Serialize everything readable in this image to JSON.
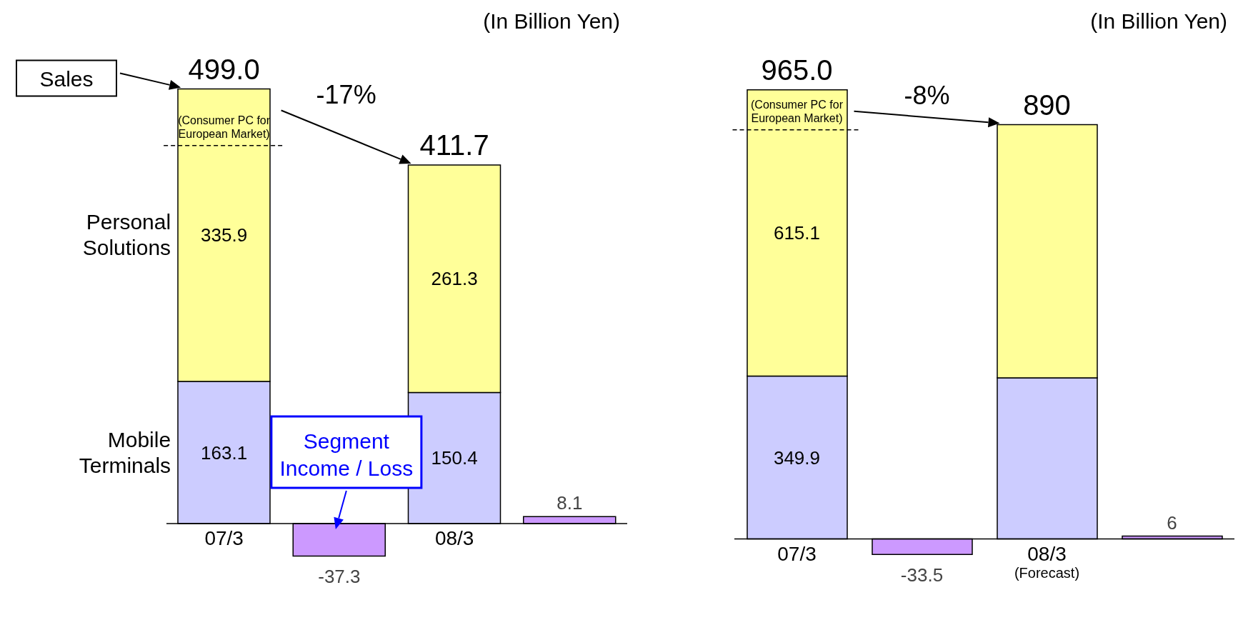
{
  "chart_data": [
    {
      "type": "bar",
      "stacked": true,
      "data_labels": true,
      "categories": [
        "07/3",
        null,
        "08/3",
        null
      ],
      "series": [
        {
          "name": "Mobile Terminals",
          "color": "#ccccff",
          "values": [
            163.1,
            null,
            150.4,
            null
          ]
        },
        {
          "name": "Personal Solutions",
          "color": "#ffff99",
          "values": [
            335.9,
            null,
            261.3,
            null
          ]
        },
        {
          "name": "Segment Income / Loss",
          "color": "#cc99ff",
          "values": [
            null,
            -37.3,
            null,
            8.1
          ]
        }
      ],
      "totals": [
        "499.0",
        null,
        "411.7",
        null
      ],
      "ref_lines": [
        {
          "axis": "y",
          "value": 434,
          "label": "(Consumer PC for European Market)",
          "line_style": "dashed"
        }
      ],
      "annotations": [
        "(In Billion Yen)",
        "Sales",
        "-17%"
      ]
    },
    {
      "type": "bar",
      "stacked": true,
      "categories": [
        "07/3",
        null,
        "08/3\n(Forecast)",
        null
      ],
      "series": [
        {
          "color": "#ccccff",
          "values": [
            349.9,
            null,
            346,
            null
          ],
          "value_labels": [
            "349.9",
            null,
            null,
            null
          ]
        },
        {
          "color": "#ffff99",
          "values": [
            615.1,
            null,
            544,
            null
          ],
          "value_labels": [
            "615.1",
            null,
            null,
            null
          ]
        },
        {
          "color": "#cc99ff",
          "values": [
            null,
            -33.5,
            null,
            6
          ],
          "value_labels": [
            null,
            "-33.5",
            null,
            "6"
          ]
        }
      ],
      "totals": [
        "965.0",
        null,
        "890",
        null
      ],
      "ref_lines": [
        {
          "axis": "y",
          "value": 879,
          "label": "(Consumer PC for European Market)",
          "line_style": "dashed"
        }
      ],
      "annotations": [
        "(In Billion Yen)",
        "-8%"
      ]
    }
  ]
}
